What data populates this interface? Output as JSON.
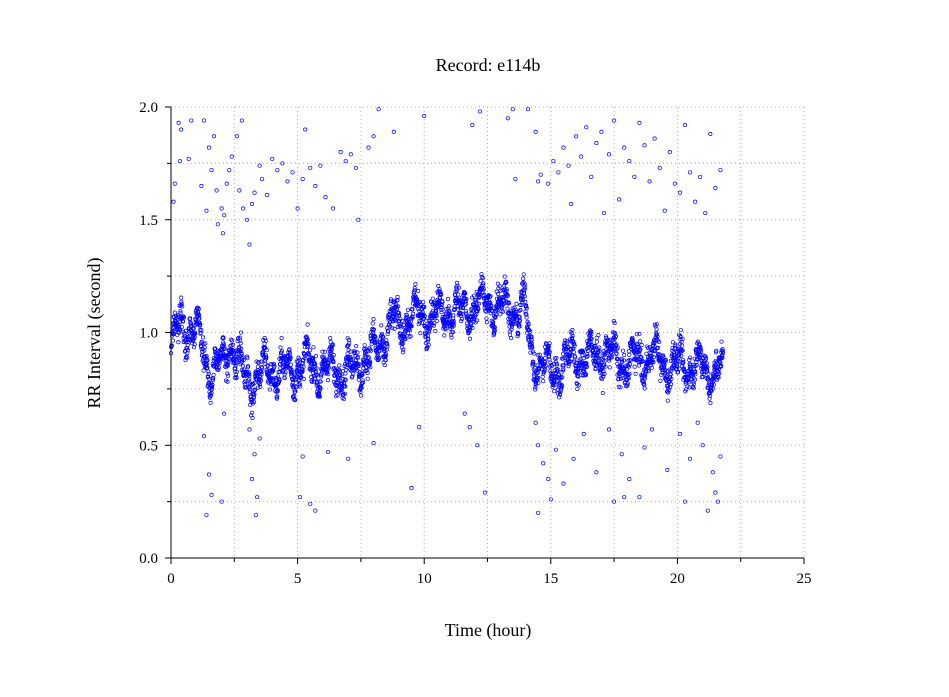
{
  "chart_data": {
    "type": "scatter",
    "title": "Record:  e114b",
    "xlabel": "Time (hour)",
    "ylabel": "RR Interval (second)",
    "xlim": [
      0,
      25
    ],
    "ylim": [
      0.0,
      2.0
    ],
    "xticks": [
      "0",
      "5",
      "10",
      "15",
      "20",
      "25"
    ],
    "yticks": [
      "0.0",
      "0.5",
      "1.0",
      "1.5",
      "2.0"
    ],
    "grid": true,
    "marker": "open-circle",
    "point_color": "#0000ff",
    "baseline_profile": {
      "x": [
        0.0,
        0.2,
        0.4,
        0.7,
        1.0,
        1.2,
        1.4,
        1.6,
        1.8,
        2.0,
        2.2,
        2.4,
        2.6,
        2.8,
        3.0,
        3.3,
        3.6,
        4.0,
        4.5,
        5.0,
        5.5,
        6.0,
        6.5,
        7.0,
        7.4,
        7.6,
        8.0,
        8.4,
        8.8,
        9.0,
        9.5,
        10.0,
        10.5,
        11.0,
        11.5,
        12.0,
        12.5,
        13.0,
        13.5,
        14.0,
        14.2,
        14.5,
        15.0,
        15.5,
        16.0,
        16.5,
        17.0,
        17.5,
        18.0,
        18.5,
        19.0,
        19.5,
        20.0,
        20.5,
        21.0,
        21.5,
        21.8
      ],
      "y": [
        0.92,
        1.0,
        1.05,
        1.02,
        1.0,
        0.95,
        0.88,
        0.82,
        0.86,
        0.84,
        0.9,
        0.95,
        0.88,
        0.83,
        0.78,
        0.8,
        0.82,
        0.84,
        0.82,
        0.85,
        0.86,
        0.83,
        0.84,
        0.83,
        0.86,
        0.88,
        0.9,
        0.98,
        1.05,
        1.03,
        1.07,
        1.08,
        1.07,
        1.1,
        1.09,
        1.12,
        1.13,
        1.12,
        1.1,
        1.1,
        0.93,
        0.86,
        0.83,
        0.86,
        0.9,
        0.88,
        0.92,
        0.89,
        0.86,
        0.88,
        0.9,
        0.86,
        0.85,
        0.86,
        0.84,
        0.83,
        0.82
      ]
    },
    "baseline_spread": 0.11,
    "recording_end_hour": 21.8,
    "outliers": [
      {
        "x": 0.1,
        "y": 1.58
      },
      {
        "x": 0.15,
        "y": 1.66
      },
      {
        "x": 0.3,
        "y": 1.93
      },
      {
        "x": 0.35,
        "y": 1.76
      },
      {
        "x": 0.4,
        "y": 1.9
      },
      {
        "x": 0.7,
        "y": 1.77
      },
      {
        "x": 0.8,
        "y": 1.94
      },
      {
        "x": 1.2,
        "y": 1.65
      },
      {
        "x": 1.3,
        "y": 1.94
      },
      {
        "x": 1.4,
        "y": 1.54
      },
      {
        "x": 1.5,
        "y": 1.82
      },
      {
        "x": 1.6,
        "y": 1.72
      },
      {
        "x": 1.7,
        "y": 1.87
      },
      {
        "x": 1.8,
        "y": 1.63
      },
      {
        "x": 1.85,
        "y": 1.48
      },
      {
        "x": 2.0,
        "y": 1.55
      },
      {
        "x": 2.05,
        "y": 1.44
      },
      {
        "x": 2.1,
        "y": 1.52
      },
      {
        "x": 2.2,
        "y": 1.66
      },
      {
        "x": 2.3,
        "y": 1.72
      },
      {
        "x": 2.4,
        "y": 1.78
      },
      {
        "x": 2.6,
        "y": 1.87
      },
      {
        "x": 2.7,
        "y": 1.63
      },
      {
        "x": 2.8,
        "y": 1.94
      },
      {
        "x": 2.85,
        "y": 1.55
      },
      {
        "x": 3.0,
        "y": 1.5
      },
      {
        "x": 3.1,
        "y": 1.39
      },
      {
        "x": 3.2,
        "y": 1.57
      },
      {
        "x": 3.3,
        "y": 1.62
      },
      {
        "x": 3.5,
        "y": 1.74
      },
      {
        "x": 3.6,
        "y": 1.68
      },
      {
        "x": 3.8,
        "y": 1.61
      },
      {
        "x": 4.0,
        "y": 1.77
      },
      {
        "x": 4.2,
        "y": 1.72
      },
      {
        "x": 4.4,
        "y": 1.75
      },
      {
        "x": 4.6,
        "y": 1.67
      },
      {
        "x": 4.8,
        "y": 1.71
      },
      {
        "x": 5.0,
        "y": 1.55
      },
      {
        "x": 5.2,
        "y": 1.68
      },
      {
        "x": 5.3,
        "y": 1.9
      },
      {
        "x": 5.5,
        "y": 1.73
      },
      {
        "x": 5.7,
        "y": 1.65
      },
      {
        "x": 5.9,
        "y": 1.74
      },
      {
        "x": 6.1,
        "y": 1.6
      },
      {
        "x": 6.4,
        "y": 1.55
      },
      {
        "x": 6.7,
        "y": 1.8
      },
      {
        "x": 6.9,
        "y": 1.76
      },
      {
        "x": 7.1,
        "y": 1.79
      },
      {
        "x": 7.3,
        "y": 1.73
      },
      {
        "x": 7.4,
        "y": 1.5
      },
      {
        "x": 7.8,
        "y": 1.82
      },
      {
        "x": 8.0,
        "y": 1.87
      },
      {
        "x": 8.2,
        "y": 1.99
      },
      {
        "x": 8.8,
        "y": 1.89
      },
      {
        "x": 10.0,
        "y": 1.96
      },
      {
        "x": 11.9,
        "y": 1.92
      },
      {
        "x": 12.2,
        "y": 1.98
      },
      {
        "x": 13.3,
        "y": 1.95
      },
      {
        "x": 13.5,
        "y": 1.99
      },
      {
        "x": 13.6,
        "y": 1.68
      },
      {
        "x": 14.1,
        "y": 1.99
      },
      {
        "x": 14.4,
        "y": 1.89
      },
      {
        "x": 14.5,
        "y": 1.67
      },
      {
        "x": 14.6,
        "y": 1.7
      },
      {
        "x": 14.9,
        "y": 1.66
      },
      {
        "x": 15.1,
        "y": 1.76
      },
      {
        "x": 15.3,
        "y": 1.71
      },
      {
        "x": 15.5,
        "y": 1.82
      },
      {
        "x": 15.7,
        "y": 1.74
      },
      {
        "x": 15.8,
        "y": 1.57
      },
      {
        "x": 16.0,
        "y": 1.87
      },
      {
        "x": 16.2,
        "y": 1.78
      },
      {
        "x": 16.4,
        "y": 1.91
      },
      {
        "x": 16.6,
        "y": 1.69
      },
      {
        "x": 16.8,
        "y": 1.84
      },
      {
        "x": 17.0,
        "y": 1.89
      },
      {
        "x": 17.1,
        "y": 1.53
      },
      {
        "x": 17.3,
        "y": 1.79
      },
      {
        "x": 17.5,
        "y": 1.94
      },
      {
        "x": 17.7,
        "y": 1.59
      },
      {
        "x": 17.9,
        "y": 1.82
      },
      {
        "x": 18.1,
        "y": 1.76
      },
      {
        "x": 18.3,
        "y": 1.69
      },
      {
        "x": 18.5,
        "y": 1.93
      },
      {
        "x": 18.7,
        "y": 1.83
      },
      {
        "x": 18.9,
        "y": 1.67
      },
      {
        "x": 19.1,
        "y": 1.86
      },
      {
        "x": 19.3,
        "y": 1.73
      },
      {
        "x": 19.5,
        "y": 1.54
      },
      {
        "x": 19.7,
        "y": 1.8
      },
      {
        "x": 19.9,
        "y": 1.66
      },
      {
        "x": 20.1,
        "y": 1.62
      },
      {
        "x": 20.3,
        "y": 1.92
      },
      {
        "x": 20.5,
        "y": 1.71
      },
      {
        "x": 20.7,
        "y": 1.58
      },
      {
        "x": 20.9,
        "y": 1.69
      },
      {
        "x": 21.1,
        "y": 1.53
      },
      {
        "x": 21.3,
        "y": 1.88
      },
      {
        "x": 21.5,
        "y": 1.64
      },
      {
        "x": 21.7,
        "y": 1.72
      },
      {
        "x": 1.3,
        "y": 0.54
      },
      {
        "x": 1.4,
        "y": 0.19
      },
      {
        "x": 1.5,
        "y": 0.37
      },
      {
        "x": 1.6,
        "y": 0.28
      },
      {
        "x": 2.0,
        "y": 0.25
      },
      {
        "x": 2.1,
        "y": 0.64
      },
      {
        "x": 3.1,
        "y": 0.57
      },
      {
        "x": 3.2,
        "y": 0.35
      },
      {
        "x": 3.3,
        "y": 0.46
      },
      {
        "x": 3.35,
        "y": 0.19
      },
      {
        "x": 3.4,
        "y": 0.27
      },
      {
        "x": 3.5,
        "y": 0.53
      },
      {
        "x": 5.1,
        "y": 0.27
      },
      {
        "x": 5.2,
        "y": 0.45
      },
      {
        "x": 5.5,
        "y": 0.24
      },
      {
        "x": 5.7,
        "y": 0.21
      },
      {
        "x": 6.2,
        "y": 0.47
      },
      {
        "x": 7.0,
        "y": 0.44
      },
      {
        "x": 8.0,
        "y": 0.51
      },
      {
        "x": 9.5,
        "y": 0.31
      },
      {
        "x": 9.8,
        "y": 0.58
      },
      {
        "x": 11.6,
        "y": 0.64
      },
      {
        "x": 11.8,
        "y": 0.58
      },
      {
        "x": 12.1,
        "y": 0.5
      },
      {
        "x": 12.4,
        "y": 0.29
      },
      {
        "x": 14.4,
        "y": 0.6
      },
      {
        "x": 14.5,
        "y": 0.5
      },
      {
        "x": 14.5,
        "y": 0.2
      },
      {
        "x": 14.7,
        "y": 0.42
      },
      {
        "x": 14.9,
        "y": 0.35
      },
      {
        "x": 15.0,
        "y": 0.26
      },
      {
        "x": 15.2,
        "y": 0.48
      },
      {
        "x": 15.5,
        "y": 0.33
      },
      {
        "x": 15.9,
        "y": 0.44
      },
      {
        "x": 16.3,
        "y": 0.55
      },
      {
        "x": 16.8,
        "y": 0.38
      },
      {
        "x": 17.3,
        "y": 0.57
      },
      {
        "x": 17.5,
        "y": 0.25
      },
      {
        "x": 17.8,
        "y": 0.46
      },
      {
        "x": 17.9,
        "y": 0.27
      },
      {
        "x": 18.1,
        "y": 0.35
      },
      {
        "x": 18.5,
        "y": 0.27
      },
      {
        "x": 18.7,
        "y": 0.49
      },
      {
        "x": 19.0,
        "y": 0.57
      },
      {
        "x": 19.6,
        "y": 0.39
      },
      {
        "x": 20.1,
        "y": 0.55
      },
      {
        "x": 20.3,
        "y": 0.25
      },
      {
        "x": 20.5,
        "y": 0.44
      },
      {
        "x": 20.8,
        "y": 0.6
      },
      {
        "x": 21.0,
        "y": 0.5
      },
      {
        "x": 21.2,
        "y": 0.21
      },
      {
        "x": 21.4,
        "y": 0.38
      },
      {
        "x": 21.5,
        "y": 0.29
      },
      {
        "x": 21.6,
        "y": 0.25
      },
      {
        "x": 21.7,
        "y": 0.45
      }
    ]
  }
}
